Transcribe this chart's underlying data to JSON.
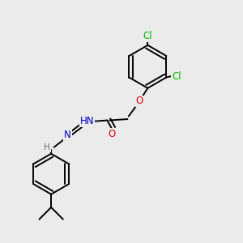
{
  "bg_color": "#ebebeb",
  "bond_color": "#000000",
  "bond_width": 1.4,
  "dbl_sep": 0.1,
  "atom_colors": {
    "Cl": "#00bb00",
    "O": "#dd0000",
    "N": "#0000cc",
    "H_color": "#557777",
    "C": "#000000"
  },
  "fontsize": 8.5
}
